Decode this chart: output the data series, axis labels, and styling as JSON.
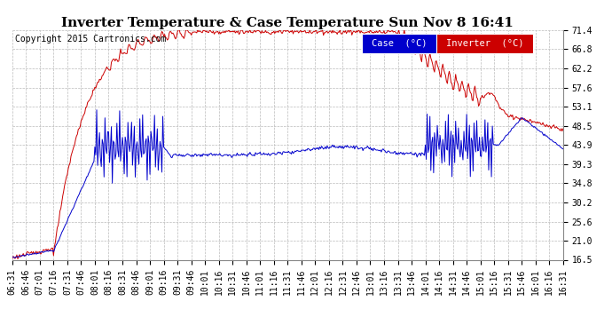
{
  "title": "Inverter Temperature & Case Temperature Sun Nov 8 16:41",
  "copyright": "Copyright 2015 Cartronics.com",
  "background_color": "#ffffff",
  "plot_bg_color": "#ffffff",
  "grid_color": "#bbbbbb",
  "ylim": [
    16.5,
    71.4
  ],
  "yticks": [
    16.5,
    21.0,
    25.6,
    30.2,
    34.8,
    39.3,
    43.9,
    48.5,
    53.1,
    57.6,
    62.2,
    66.8,
    71.4
  ],
  "case_line_color": "#0000cc",
  "inverter_line_color": "#cc0000",
  "title_fontsize": 11,
  "copyright_fontsize": 7,
  "tick_fontsize": 7,
  "xtick_labels": [
    "06:31",
    "06:46",
    "07:01",
    "07:16",
    "07:31",
    "07:46",
    "08:01",
    "08:16",
    "08:31",
    "08:46",
    "09:01",
    "09:16",
    "09:31",
    "09:46",
    "10:01",
    "10:16",
    "10:31",
    "10:46",
    "11:01",
    "11:16",
    "11:31",
    "11:46",
    "12:01",
    "12:16",
    "12:31",
    "12:46",
    "13:01",
    "13:16",
    "13:31",
    "13:46",
    "14:01",
    "14:16",
    "14:31",
    "14:46",
    "15:01",
    "15:16",
    "15:31",
    "15:46",
    "16:01",
    "16:16",
    "16:31"
  ]
}
